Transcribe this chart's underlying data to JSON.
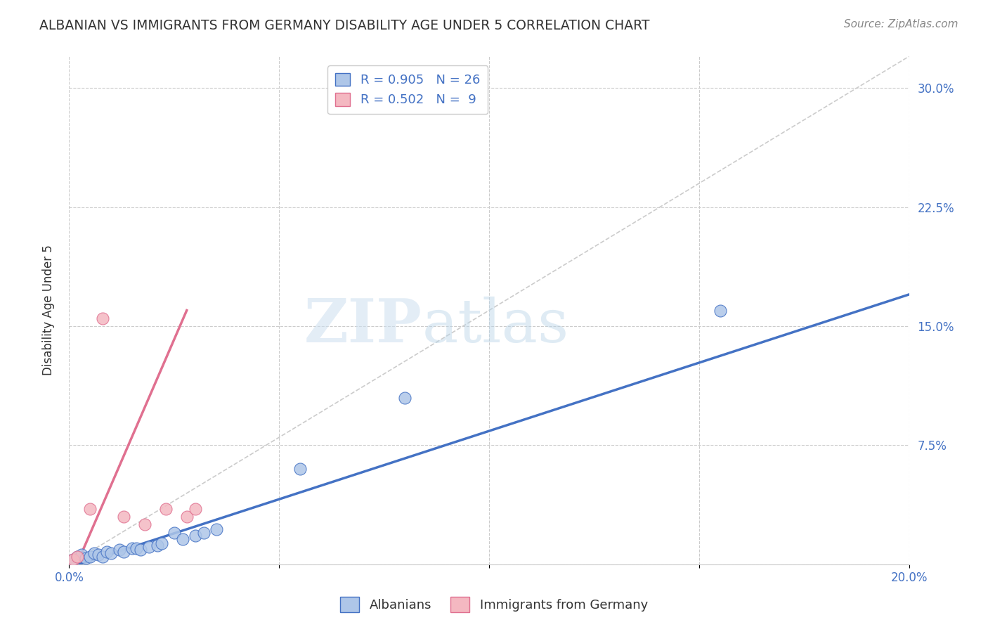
{
  "title": "ALBANIAN VS IMMIGRANTS FROM GERMANY DISABILITY AGE UNDER 5 CORRELATION CHART",
  "source": "Source: ZipAtlas.com",
  "ylabel": "Disability Age Under 5",
  "xlim": [
    0.0,
    0.2
  ],
  "ylim": [
    0.0,
    0.32
  ],
  "xticks": [
    0.0,
    0.05,
    0.1,
    0.15,
    0.2
  ],
  "xticklabels": [
    "0.0%",
    "",
    "",
    "",
    "20.0%"
  ],
  "yticks": [
    0.0,
    0.075,
    0.15,
    0.225,
    0.3
  ],
  "yticklabels": [
    "",
    "7.5%",
    "15.0%",
    "22.5%",
    "30.0%"
  ],
  "grid_color": "#cccccc",
  "background_color": "#ffffff",
  "diagonal_color": "#cccccc",
  "albanian_color": "#aec6e8",
  "albanian_line_color": "#4472c4",
  "immigrant_color": "#f4b8c1",
  "immigrant_line_color": "#e07090",
  "legend_R_albanian": "R = 0.905",
  "legend_N_albanian": "N = 26",
  "legend_R_immigrant": "R = 0.502",
  "legend_N_immigrant": "N =  9",
  "albanian_x": [
    0.001,
    0.002,
    0.003,
    0.004,
    0.005,
    0.006,
    0.007,
    0.008,
    0.009,
    0.01,
    0.012,
    0.013,
    0.015,
    0.016,
    0.017,
    0.019,
    0.021,
    0.022,
    0.025,
    0.027,
    0.03,
    0.032,
    0.035,
    0.055,
    0.08,
    0.155
  ],
  "albanian_y": [
    0.003,
    0.005,
    0.006,
    0.004,
    0.005,
    0.007,
    0.006,
    0.005,
    0.008,
    0.007,
    0.009,
    0.008,
    0.01,
    0.01,
    0.009,
    0.011,
    0.012,
    0.013,
    0.02,
    0.016,
    0.018,
    0.02,
    0.022,
    0.06,
    0.105,
    0.16
  ],
  "immigrant_x": [
    0.001,
    0.002,
    0.005,
    0.008,
    0.013,
    0.018,
    0.023,
    0.028,
    0.03
  ],
  "immigrant_y": [
    0.003,
    0.005,
    0.035,
    0.155,
    0.03,
    0.025,
    0.035,
    0.03,
    0.035
  ],
  "albanian_line_x": [
    0.0,
    0.2
  ],
  "albanian_line_y": [
    -0.002,
    0.17
  ],
  "immigrant_line_x": [
    0.001,
    0.028
  ],
  "immigrant_line_y": [
    -0.005,
    0.16
  ],
  "watermark_zip": "ZIP",
  "watermark_atlas": "atlas",
  "marker_size": 150
}
